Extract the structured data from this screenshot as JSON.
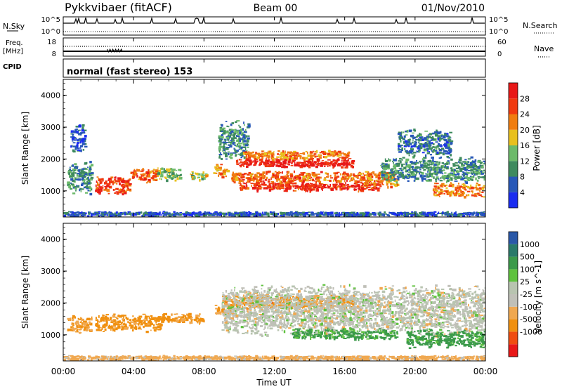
{
  "header": {
    "station": "Pykkvibaer (fitACF)",
    "beam": "Beam 00",
    "date": "01/Nov/2010"
  },
  "top_panels": {
    "nsky_label": "N.Sky",
    "nsky_tick_hi": "10^5",
    "nsky_tick_lo": "10^0",
    "nsearch_label": "N.Search",
    "nsearch_tick_hi": "10^5",
    "nsearch_tick_lo": "10^0",
    "freq_label_1": "Freq.",
    "freq_label_2": "[MHz]",
    "freq_tick_hi": "18",
    "freq_tick_lo": "8",
    "nave_label": "Nave",
    "nave_tick_hi": "60",
    "nave_tick_lo": "0",
    "cpid_label": "CPID",
    "cpid_text": "normal (fast stereo) 153"
  },
  "x_axis": {
    "label": "Time UT",
    "ticks": [
      "00:00",
      "04:00",
      "08:00",
      "12:00",
      "16:00",
      "20:00",
      "00:00"
    ]
  },
  "colors": {
    "power": [
      "#1b2df0",
      "#2858b8",
      "#3e8a5e",
      "#6cba6a",
      "#e8c01e",
      "#f07d10",
      "#f03a10",
      "#e81818"
    ],
    "velocity": [
      "#e81818",
      "#f04d10",
      "#f09010",
      "#f0a850",
      "#c0c0b8",
      "#b8c4b0",
      "#5fc23e",
      "#3b9a4a",
      "#2a7a6a",
      "#2a58a8"
    ],
    "ground_scatter": "#b8b8b0"
  },
  "chart_data": [
    {
      "type": "heatmap",
      "title": "Power",
      "ylabel": "Slant Range [km]",
      "xlabel": "",
      "y_ticks": [
        "1000",
        "2000",
        "3000",
        "4000"
      ],
      "ylim": [
        180,
        4500
      ],
      "xlim_hours": [
        0,
        24
      ],
      "colorbar": {
        "label": "Power [dB]",
        "range": [
          0,
          32
        ],
        "ticks": [
          "4",
          "8",
          "12",
          "16",
          "20",
          "24",
          "28"
        ]
      },
      "regions": [
        {
          "t_start": 0.2,
          "t_end": 1.6,
          "range_center": 1450,
          "range_width": 900,
          "value": 10
        },
        {
          "t_start": 0.4,
          "t_end": 1.2,
          "range_center": 2700,
          "range_width": 800,
          "value": 6
        },
        {
          "t_start": 1.8,
          "t_end": 3.8,
          "range_center": 1200,
          "range_width": 500,
          "value": 26
        },
        {
          "t_start": 3.8,
          "t_end": 5.3,
          "range_center": 1500,
          "range_width": 400,
          "value": 24
        },
        {
          "t_start": 5.3,
          "t_end": 6.7,
          "range_center": 1550,
          "range_width": 400,
          "value": 14
        },
        {
          "t_start": 7.2,
          "t_end": 8.1,
          "range_center": 1500,
          "range_width": 250,
          "value": 16
        },
        {
          "t_start": 8.5,
          "t_end": 9.3,
          "range_center": 1650,
          "range_width": 350,
          "value": 20
        },
        {
          "t_start": 8.8,
          "t_end": 10.5,
          "range_center": 2600,
          "range_width": 1100,
          "value": 10
        },
        {
          "t_start": 9.8,
          "t_end": 16.5,
          "range_center": 1900,
          "range_width": 250,
          "value": 30
        },
        {
          "t_start": 10.2,
          "t_end": 16.2,
          "range_center": 2150,
          "range_width": 250,
          "value": 22
        },
        {
          "t_start": 9.5,
          "t_end": 17.5,
          "range_center": 1450,
          "range_width": 350,
          "value": 24
        },
        {
          "t_start": 10.0,
          "t_end": 18.0,
          "range_center": 1150,
          "range_width": 250,
          "value": 28
        },
        {
          "t_start": 17.0,
          "t_end": 19.0,
          "range_center": 1400,
          "range_width": 450,
          "value": 22
        },
        {
          "t_start": 18.0,
          "t_end": 24.0,
          "range_center": 1700,
          "range_width": 700,
          "value": 10
        },
        {
          "t_start": 21.0,
          "t_end": 24.0,
          "range_center": 1050,
          "range_width": 400,
          "value": 22
        },
        {
          "t_start": 19.0,
          "t_end": 22.0,
          "range_center": 2500,
          "range_width": 800,
          "value": 8
        },
        {
          "t_start": 0.0,
          "t_end": 24.0,
          "range_center": 300,
          "range_width": 120,
          "value": 6
        }
      ]
    },
    {
      "type": "heatmap",
      "title": "Velocity",
      "ylabel": "Slant Range [km]",
      "xlabel": "Time UT",
      "y_ticks": [
        "1000",
        "2000",
        "3000",
        "4000"
      ],
      "ylim": [
        180,
        4500
      ],
      "xlim_hours": [
        0,
        24
      ],
      "colorbar": {
        "label": "Velocity [m s^-1]",
        "tick_labels": [
          "-1000",
          "-500",
          "-100",
          "-25",
          "25",
          "100",
          "500",
          "1000"
        ]
      },
      "regions": [
        {
          "t_start": 0.2,
          "t_end": 1.6,
          "range_center": 1350,
          "range_width": 500,
          "value": -100
        },
        {
          "t_start": 1.8,
          "t_end": 5.5,
          "range_center": 1400,
          "range_width": 500,
          "value": -200
        },
        {
          "t_start": 5.5,
          "t_end": 8.0,
          "range_center": 1550,
          "range_width": 300,
          "value": -150
        },
        {
          "t_start": 8.5,
          "t_end": 9.5,
          "range_center": 1800,
          "range_width": 300,
          "value": -80
        },
        {
          "t_start": 9.0,
          "t_end": 16.5,
          "range_center": 2050,
          "range_width": 400,
          "value": -300
        },
        {
          "t_start": 9.0,
          "t_end": 24.0,
          "range_center": 1800,
          "range_width": 1400,
          "value": 0
        },
        {
          "t_start": 13.0,
          "t_end": 19.0,
          "range_center": 1050,
          "range_width": 300,
          "value": 150
        },
        {
          "t_start": 19.5,
          "t_end": 24.0,
          "range_center": 900,
          "range_width": 500,
          "value": 200
        },
        {
          "t_start": 0.0,
          "t_end": 24.0,
          "range_center": 300,
          "range_width": 120,
          "value": -50
        }
      ]
    }
  ]
}
